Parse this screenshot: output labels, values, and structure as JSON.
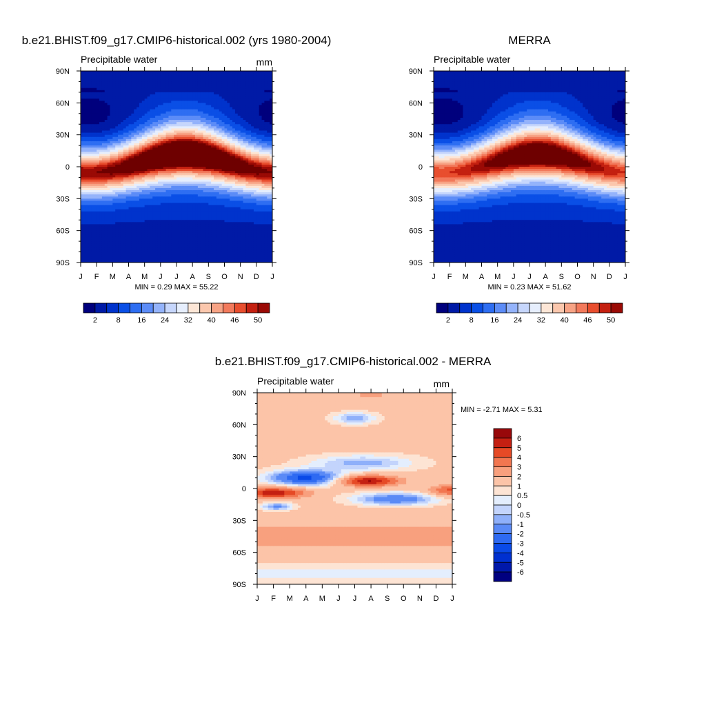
{
  "colors": {
    "scale16": [
      "#00007d",
      "#001aa6",
      "#0033cc",
      "#0a4fe6",
      "#2e6ef2",
      "#5c8cf7",
      "#94b3fb",
      "#c6d6fc",
      "#e6eefd",
      "#fde6d6",
      "#fbc7ad",
      "#f7a385",
      "#f27a5c",
      "#e84e2e",
      "#c42010",
      "#9a0a05",
      "#6e0000"
    ],
    "diff": [
      "#000080",
      "#0018aa",
      "#0030d0",
      "#0a4ae8",
      "#2e6af2",
      "#5a8af6",
      "#8fb0fa",
      "#c3d4fc",
      "#e4eefd",
      "#fde4d4",
      "#fcc4a8",
      "#f8a07e",
      "#f27650",
      "#e64a26",
      "#c42012",
      "#98080a"
    ]
  },
  "chart_data": [
    {
      "type": "heatmap",
      "title": "b.e21.BHIST.f09_g17.CMIP6-historical.002 (yrs 1980-2004)",
      "subtitle": "Precipitable water",
      "units": "mm",
      "x_ticks": [
        "J",
        "F",
        "M",
        "A",
        "M",
        "J",
        "J",
        "A",
        "S",
        "O",
        "N",
        "D",
        "J"
      ],
      "y_ticks": [
        "90N",
        "60N",
        "30N",
        "0",
        "30S",
        "60S",
        "90S"
      ],
      "stats": "MIN =   0.29 MAX =  55.22",
      "colorbar_labels": [
        "2",
        "8",
        "16",
        "24",
        "32",
        "40",
        "46",
        "50"
      ],
      "zmin": 0.29,
      "zmax": 55.22
    },
    {
      "type": "heatmap",
      "title": "MERRA",
      "subtitle": "Precipitable water",
      "units": "mm",
      "x_ticks": [
        "J",
        "F",
        "M",
        "A",
        "M",
        "J",
        "J",
        "A",
        "S",
        "O",
        "N",
        "D",
        "J"
      ],
      "y_ticks": [
        "90N",
        "60N",
        "30N",
        "0",
        "30S",
        "60S",
        "90S"
      ],
      "stats": "MIN =   0.23 MAX =  51.62",
      "colorbar_labels": [
        "2",
        "8",
        "16",
        "24",
        "32",
        "40",
        "46",
        "50"
      ],
      "zmin": 0.23,
      "zmax": 51.62
    },
    {
      "type": "heatmap",
      "title": "b.e21.BHIST.f09_g17.CMIP6-historical.002 - MERRA",
      "subtitle": "Precipitable water",
      "units": "mm",
      "x_ticks": [
        "J",
        "F",
        "M",
        "A",
        "M",
        "J",
        "J",
        "A",
        "S",
        "O",
        "N",
        "D",
        "J"
      ],
      "y_ticks": [
        "90N",
        "60N",
        "30N",
        "0",
        "30S",
        "60S",
        "90S"
      ],
      "stats": "MIN =  -2.71 MAX =   5.31",
      "colorbar_labels": [
        "6",
        "5",
        "4",
        "3",
        "2",
        "1",
        "0.5",
        "0",
        "-0.5",
        "-1",
        "-2",
        "-3",
        "-4",
        "-5",
        "-6"
      ],
      "zmin": -2.71,
      "zmax": 5.31
    }
  ]
}
